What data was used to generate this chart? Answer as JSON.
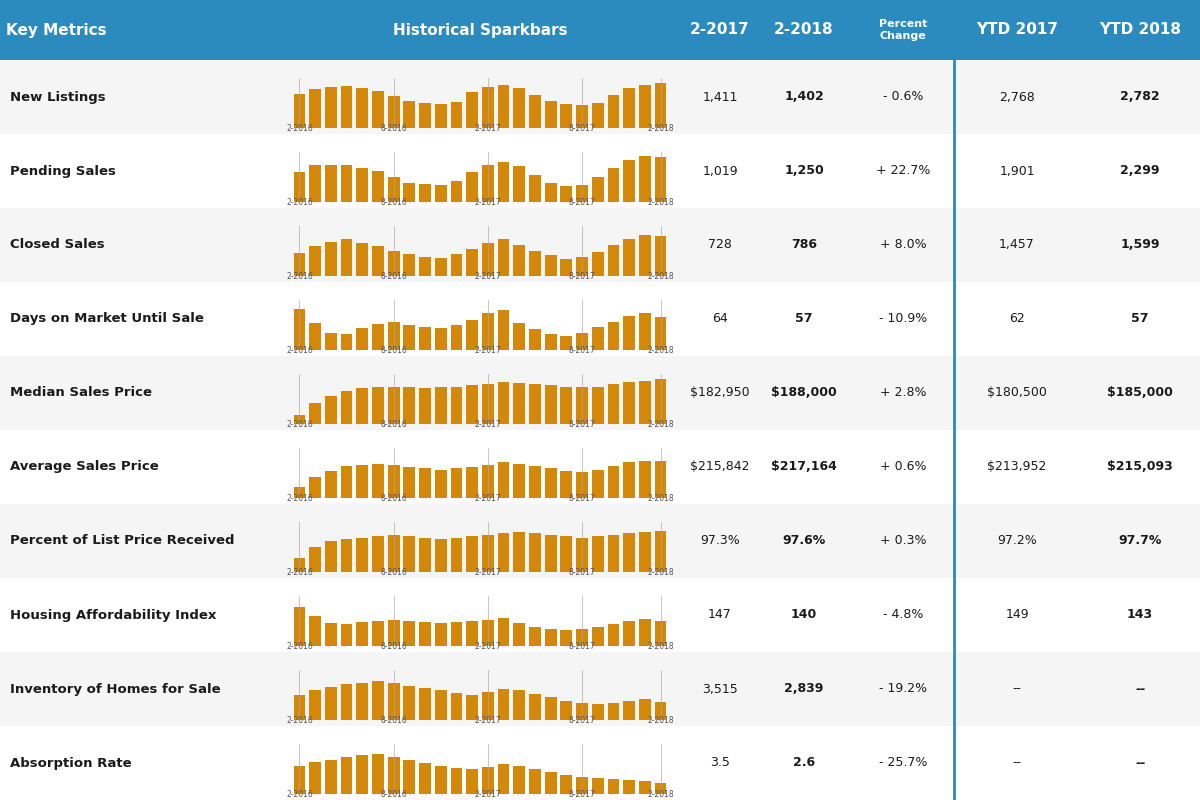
{
  "header_bg": "#2b8bbf",
  "header_text_color": "#ffffff",
  "row_bg_odd": "#f5f5f5",
  "row_bg_even": "#ffffff",
  "bar_color": "#d4880a",
  "divider_color": "#2b8bbf",
  "text_dark": "#1a1a1a",
  "text_bold": "#000000",
  "headers": [
    "Key Metrics",
    "Historical Sparkbars",
    "2-2017",
    "2-2018",
    "Percent\nChange",
    "YTD 2017",
    "YTD 2018"
  ],
  "metrics": [
    "New Listings",
    "Pending Sales",
    "Closed Sales",
    "Days on Market Until Sale",
    "Median Sales Price",
    "Average Sales Price",
    "Percent of List Price Received",
    "Housing Affordability Index",
    "Inventory of Homes for Sale",
    "Absorption Rate"
  ],
  "val_2017": [
    "1,411",
    "1,019",
    "728",
    "64",
    "$182,950",
    "$215,842",
    "97.3%",
    "147",
    "3,515",
    "3.5"
  ],
  "val_2018": [
    "1,402",
    "1,250",
    "786",
    "57",
    "$188,000",
    "$217,164",
    "97.6%",
    "140",
    "2,839",
    "2.6"
  ],
  "pct_change": [
    "- 0.6%",
    "+ 22.7%",
    "+ 8.0%",
    "- 10.9%",
    "+ 2.8%",
    "+ 0.6%",
    "+ 0.3%",
    "- 4.8%",
    "- 19.2%",
    "- 25.7%"
  ],
  "ytd_2017": [
    "2,768",
    "1,901",
    "1,457",
    "62",
    "$180,500",
    "$213,952",
    "97.2%",
    "149",
    "--",
    "--"
  ],
  "ytd_2018": [
    "2,782",
    "2,299",
    "1,599",
    "57",
    "$185,000",
    "$215,093",
    "97.7%",
    "143",
    "--",
    "--"
  ],
  "sparkbars": [
    [
      0.75,
      0.85,
      0.9,
      0.92,
      0.88,
      0.82,
      0.7,
      0.6,
      0.55,
      0.52,
      0.58,
      0.78,
      0.9,
      0.95,
      0.88,
      0.72,
      0.6,
      0.52,
      0.5,
      0.55,
      0.72,
      0.88,
      0.95,
      0.98
    ],
    [
      0.65,
      0.8,
      0.82,
      0.8,
      0.75,
      0.68,
      0.55,
      0.42,
      0.4,
      0.38,
      0.45,
      0.65,
      0.8,
      0.88,
      0.78,
      0.6,
      0.42,
      0.35,
      0.38,
      0.55,
      0.75,
      0.92,
      1.0,
      0.98
    ],
    [
      0.5,
      0.65,
      0.75,
      0.8,
      0.72,
      0.65,
      0.55,
      0.48,
      0.42,
      0.4,
      0.48,
      0.6,
      0.72,
      0.8,
      0.68,
      0.55,
      0.45,
      0.38,
      0.42,
      0.52,
      0.68,
      0.82,
      0.9,
      0.88
    ],
    [
      0.9,
      0.6,
      0.38,
      0.35,
      0.48,
      0.58,
      0.62,
      0.55,
      0.5,
      0.48,
      0.55,
      0.65,
      0.8,
      0.88,
      0.6,
      0.45,
      0.35,
      0.3,
      0.38,
      0.5,
      0.62,
      0.75,
      0.82,
      0.72
    ],
    [
      0.2,
      0.45,
      0.62,
      0.72,
      0.78,
      0.8,
      0.82,
      0.8,
      0.78,
      0.8,
      0.82,
      0.85,
      0.88,
      0.92,
      0.9,
      0.88,
      0.85,
      0.82,
      0.8,
      0.82,
      0.88,
      0.92,
      0.95,
      0.98
    ],
    [
      0.25,
      0.45,
      0.6,
      0.7,
      0.72,
      0.75,
      0.72,
      0.68,
      0.65,
      0.62,
      0.65,
      0.68,
      0.72,
      0.78,
      0.75,
      0.7,
      0.65,
      0.6,
      0.58,
      0.62,
      0.7,
      0.78,
      0.82,
      0.8
    ],
    [
      0.3,
      0.55,
      0.68,
      0.72,
      0.75,
      0.78,
      0.8,
      0.78,
      0.75,
      0.72,
      0.75,
      0.78,
      0.82,
      0.85,
      0.88,
      0.85,
      0.8,
      0.78,
      0.75,
      0.78,
      0.82,
      0.85,
      0.88,
      0.9
    ],
    [
      0.85,
      0.65,
      0.5,
      0.48,
      0.52,
      0.55,
      0.58,
      0.55,
      0.52,
      0.5,
      0.52,
      0.55,
      0.58,
      0.62,
      0.5,
      0.42,
      0.38,
      0.35,
      0.38,
      0.42,
      0.48,
      0.55,
      0.6,
      0.55
    ],
    [
      0.55,
      0.65,
      0.72,
      0.78,
      0.82,
      0.85,
      0.8,
      0.75,
      0.7,
      0.65,
      0.6,
      0.55,
      0.62,
      0.68,
      0.65,
      0.58,
      0.5,
      0.42,
      0.38,
      0.35,
      0.38,
      0.42,
      0.45,
      0.4
    ],
    [
      0.62,
      0.7,
      0.75,
      0.8,
      0.85,
      0.88,
      0.82,
      0.75,
      0.68,
      0.62,
      0.58,
      0.55,
      0.6,
      0.65,
      0.62,
      0.55,
      0.48,
      0.42,
      0.38,
      0.35,
      0.32,
      0.3,
      0.28,
      0.25
    ]
  ],
  "tick_labels": [
    "2-2016",
    "8-2016",
    "2-2017",
    "8-2017",
    "2-2018"
  ]
}
